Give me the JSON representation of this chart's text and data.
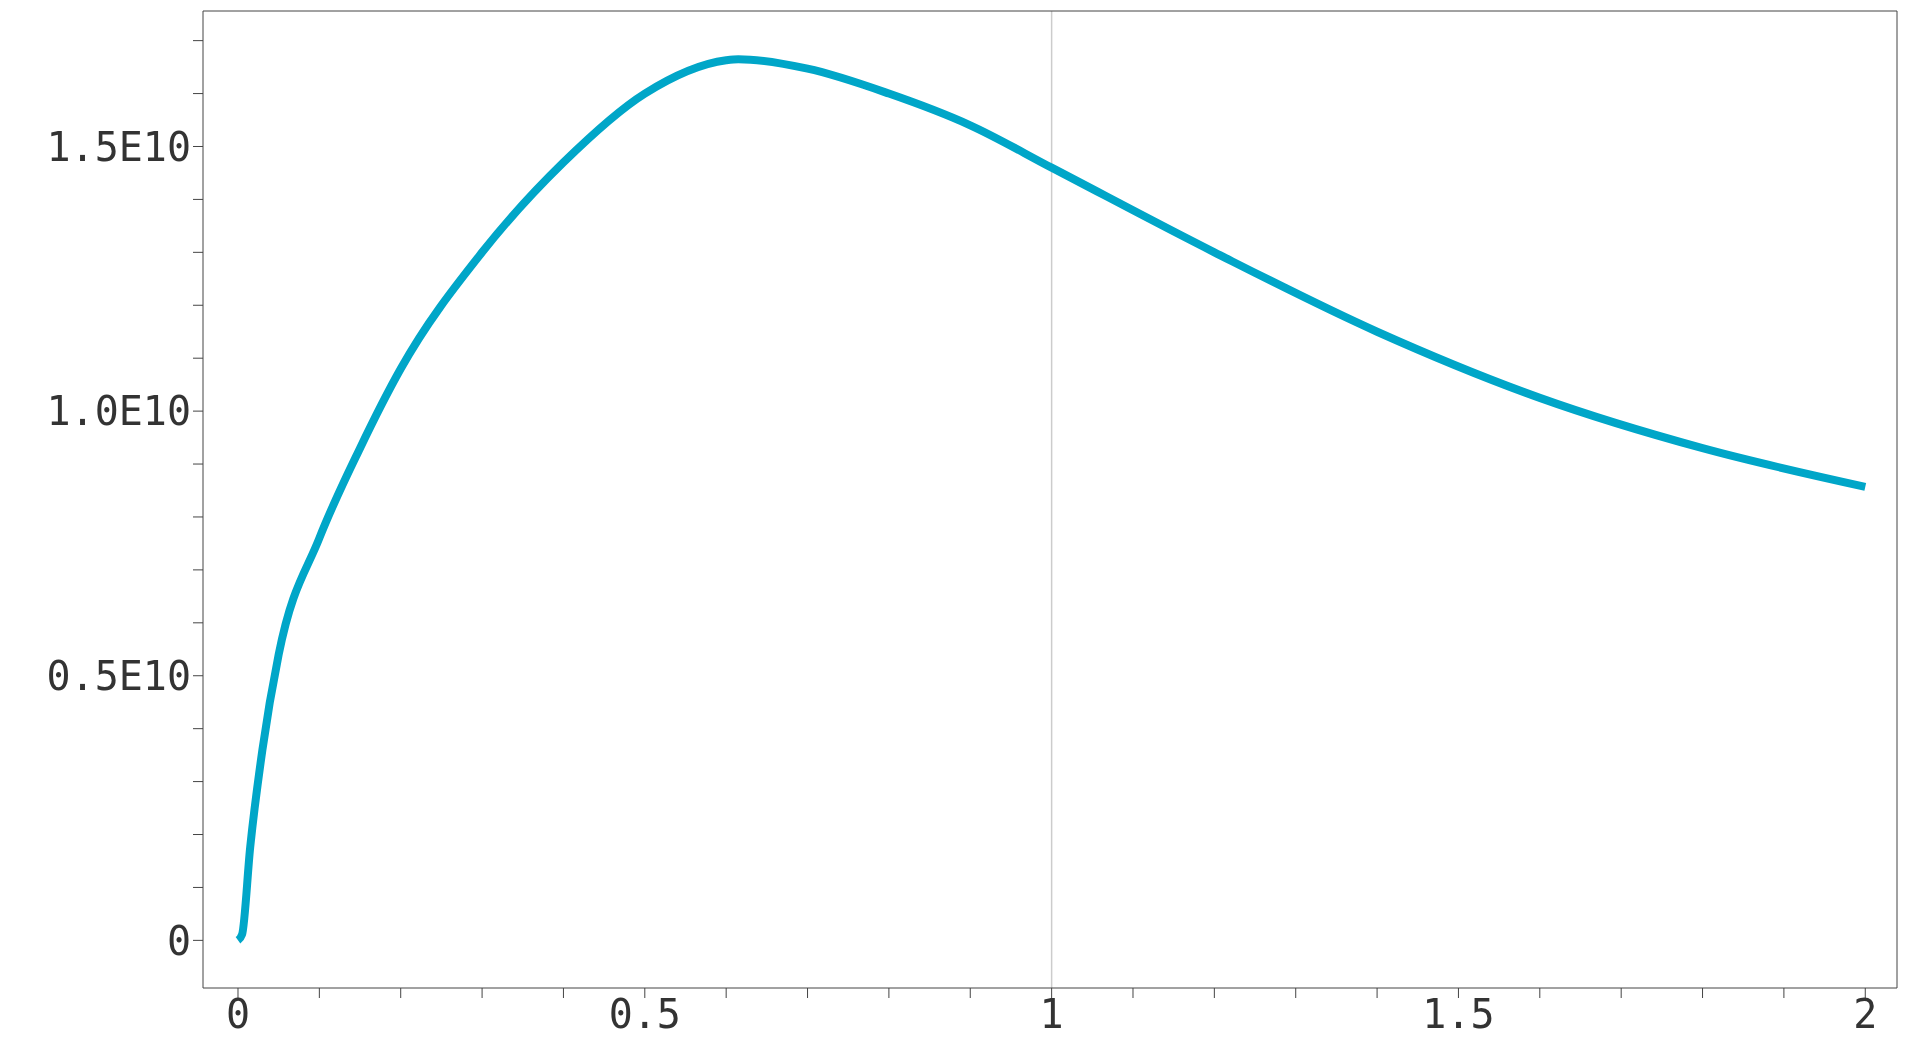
{
  "chart_data": {
    "type": "line",
    "x": [
      0,
      0.005,
      0.015,
      0.03,
      0.05,
      0.1,
      0.15,
      0.2,
      0.3,
      0.4,
      0.5,
      0.6,
      0.615,
      0.7,
      0.8,
      0.9,
      1.0,
      1.2,
      1.4,
      1.6,
      1.8,
      2.0
    ],
    "series": [
      {
        "color": "#00a6c8",
        "values": [
          0,
          110000000,
          1760000000,
          3600000000,
          5400000000,
          7600000000,
          9300000000,
          10800000000,
          13000000000,
          14700000000,
          16000000000,
          16630000000,
          16650000000,
          16470000000,
          16000000000,
          15400000000,
          14600000000,
          13000000000,
          11500000000,
          10250000000,
          9300000000,
          8570000000
        ]
      }
    ],
    "xlim": [
      -0.043,
      2.039
    ],
    "xticks": [
      0,
      {
        "value": 0.1,
        "label": null
      },
      {
        "value": 0.2,
        "label": null
      },
      {
        "value": 0.3,
        "label": null
      },
      {
        "value": 0.4,
        "label": null
      },
      0.5,
      {
        "value": 0.6,
        "label": null
      },
      {
        "value": 0.7,
        "label": null
      },
      {
        "value": 0.8,
        "label": null
      },
      {
        "value": 0.9,
        "label": null
      },
      1,
      {
        "value": 1.1,
        "label": null
      },
      {
        "value": 1.2,
        "label": null
      },
      {
        "value": 1.3,
        "label": null
      },
      {
        "value": 1.4,
        "label": null
      },
      1.5,
      {
        "value": 1.6,
        "label": null
      },
      {
        "value": 1.7,
        "label": null
      },
      {
        "value": 1.8,
        "label": null
      },
      {
        "value": 1.9,
        "label": null
      },
      2
    ],
    "ylim": [
      -900000000,
      17560000000
    ],
    "yticks": [
      0,
      {
        "value": 1000000000,
        "label": null
      },
      {
        "value": 2000000000,
        "label": null
      },
      {
        "value": 3000000000,
        "label": null
      },
      {
        "value": 4000000000,
        "label": null
      },
      {
        "value": 5000000000,
        "label": "0.5E10"
      },
      {
        "value": 6000000000,
        "label": null
      },
      {
        "value": 7000000000,
        "label": null
      },
      {
        "value": 8000000000,
        "label": null
      },
      {
        "value": 9000000000,
        "label": null
      },
      {
        "value": 10000000000,
        "label": "1.0E10"
      },
      {
        "value": 11000000000,
        "label": null
      },
      {
        "value": 12000000000,
        "label": null
      },
      {
        "value": 13000000000,
        "label": null
      },
      {
        "value": 14000000000,
        "label": null
      },
      {
        "value": 15000000000,
        "label": "1.5E10"
      },
      {
        "value": 16000000000,
        "label": null
      },
      {
        "value": 17000000000,
        "label": null
      }
    ],
    "ref_lines": [
      {
        "axis": "x",
        "value": 1,
        "color": "#cccccc"
      }
    ],
    "grid": false,
    "legend": false,
    "marker": "none",
    "line_style": "solid"
  }
}
